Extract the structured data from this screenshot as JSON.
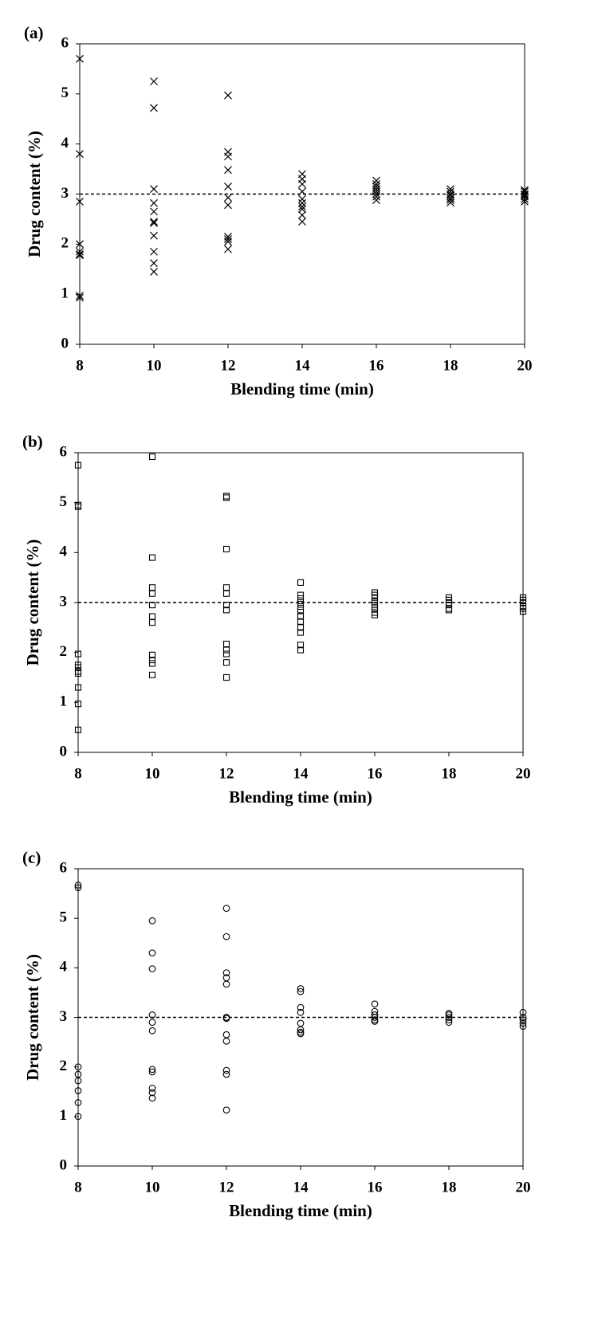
{
  "chart_data": [
    {
      "type": "scatter",
      "panel_label": "(a)",
      "x_label": "Blending time (min)",
      "y_label": "Drug content (%)",
      "marker": "x",
      "color": "#000000",
      "reference_line": 3,
      "xlim": [
        8,
        20
      ],
      "xticks": [
        8,
        10,
        12,
        14,
        16,
        18,
        20
      ],
      "ylim": [
        0,
        6
      ],
      "yticks": [
        0,
        1,
        2,
        3,
        4,
        5,
        6
      ],
      "x": [
        8,
        8,
        8,
        8,
        8,
        8,
        8,
        8,
        8,
        10,
        10,
        10,
        10,
        10,
        10,
        10,
        10,
        10,
        10,
        10,
        12,
        12,
        12,
        12,
        12,
        12,
        12,
        12,
        12,
        12,
        12,
        14,
        14,
        14,
        14,
        14,
        14,
        14,
        14,
        14,
        14,
        16,
        16,
        16,
        16,
        16,
        16,
        16,
        16,
        18,
        18,
        18,
        18,
        18,
        18,
        18,
        20,
        20,
        20,
        20,
        20,
        20,
        20
      ],
      "values": [
        5.7,
        3.8,
        2.85,
        2.0,
        1.85,
        1.8,
        1.78,
        0.97,
        0.93,
        5.25,
        4.72,
        3.1,
        2.82,
        2.65,
        2.45,
        2.42,
        2.17,
        1.85,
        1.62,
        1.45,
        4.97,
        3.84,
        3.75,
        3.48,
        3.15,
        2.93,
        2.78,
        2.15,
        2.1,
        2.05,
        1.9,
        3.4,
        3.3,
        3.2,
        3.05,
        2.9,
        2.82,
        2.75,
        2.7,
        2.58,
        2.45,
        3.27,
        3.2,
        3.15,
        3.1,
        3.05,
        3.0,
        2.95,
        2.88,
        3.1,
        3.05,
        3.0,
        2.97,
        2.92,
        2.88,
        2.83,
        3.08,
        3.05,
        3.0,
        2.98,
        2.95,
        2.9,
        2.85
      ]
    },
    {
      "type": "scatter",
      "panel_label": "(b)",
      "x_label": "Blending time (min)",
      "y_label": "Drug content (%)",
      "marker": "square",
      "color": "#000000",
      "reference_line": 3,
      "xlim": [
        8,
        20
      ],
      "xticks": [
        8,
        10,
        12,
        14,
        16,
        18,
        20
      ],
      "ylim": [
        0,
        6
      ],
      "yticks": [
        0,
        1,
        2,
        3,
        4,
        5,
        6
      ],
      "x": [
        8,
        8,
        8,
        8,
        8,
        8,
        8,
        8,
        8,
        8,
        8,
        10,
        10,
        10,
        10,
        10,
        10,
        10,
        10,
        10,
        10,
        10,
        12,
        12,
        12,
        12,
        12,
        12,
        12,
        12,
        12,
        12,
        12,
        12,
        14,
        14,
        14,
        14,
        14,
        14,
        14,
        14,
        14,
        14,
        14,
        14,
        16,
        16,
        16,
        16,
        16,
        16,
        16,
        16,
        18,
        18,
        18,
        18,
        18,
        18,
        20,
        20,
        20,
        20,
        20,
        20
      ],
      "values": [
        5.75,
        4.95,
        4.92,
        1.97,
        1.75,
        1.7,
        1.62,
        1.58,
        1.3,
        0.97,
        0.45,
        5.92,
        3.9,
        3.3,
        3.18,
        2.95,
        2.72,
        2.6,
        1.95,
        1.85,
        1.78,
        1.55,
        5.13,
        5.1,
        4.07,
        3.3,
        3.18,
        2.95,
        2.85,
        2.17,
        2.05,
        1.97,
        1.8,
        1.5,
        3.4,
        3.15,
        3.08,
        3.0,
        2.92,
        2.85,
        2.72,
        2.62,
        2.5,
        2.4,
        2.15,
        2.05,
        3.2,
        3.15,
        3.1,
        3.02,
        2.95,
        2.88,
        2.8,
        2.75,
        3.1,
        3.05,
        3.0,
        2.95,
        2.88,
        2.85,
        3.1,
        3.05,
        3.0,
        2.92,
        2.88,
        2.82
      ]
    },
    {
      "type": "scatter",
      "panel_label": "(c)",
      "x_label": "Blending time (min)",
      "y_label": "Drug content (%)",
      "marker": "circle",
      "color": "#000000",
      "reference_line": 3,
      "xlim": [
        8,
        20
      ],
      "xticks": [
        8,
        10,
        12,
        14,
        16,
        18,
        20
      ],
      "ylim": [
        0,
        6
      ],
      "yticks": [
        0,
        1,
        2,
        3,
        4,
        5,
        6
      ],
      "x": [
        8,
        8,
        8,
        8,
        8,
        8,
        8,
        8,
        10,
        10,
        10,
        10,
        10,
        10,
        10,
        10,
        10,
        10,
        10,
        12,
        12,
        12,
        12,
        12,
        12,
        12,
        12,
        12,
        12,
        12,
        12,
        14,
        14,
        14,
        14,
        14,
        14,
        14,
        14,
        16,
        16,
        16,
        16,
        16,
        16,
        18,
        18,
        18,
        18,
        18,
        20,
        20,
        20,
        20,
        20
      ],
      "values": [
        5.67,
        5.62,
        2.0,
        1.85,
        1.72,
        1.52,
        1.28,
        1.0,
        4.95,
        4.3,
        3.98,
        3.05,
        2.9,
        2.73,
        1.95,
        1.9,
        1.57,
        1.48,
        1.37,
        5.2,
        4.63,
        3.9,
        3.8,
        3.67,
        3.0,
        2.98,
        2.65,
        2.52,
        1.93,
        1.85,
        1.13,
        3.58,
        3.52,
        3.2,
        3.1,
        2.88,
        2.75,
        2.7,
        2.67,
        3.27,
        3.12,
        3.05,
        3.0,
        2.95,
        2.92,
        3.08,
        3.05,
        3.0,
        2.95,
        2.9,
        3.1,
        3.0,
        2.95,
        2.88,
        2.82
      ]
    }
  ]
}
